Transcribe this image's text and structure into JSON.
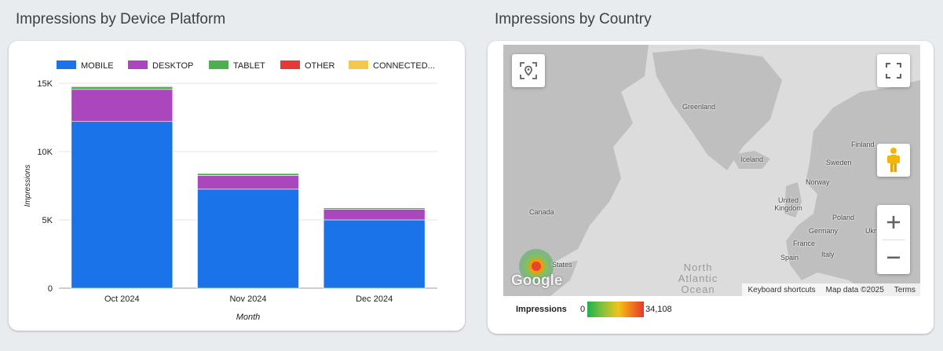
{
  "left_panel": {
    "title": "Impressions by Device Platform"
  },
  "right_panel": {
    "title": "Impressions by Country"
  },
  "chart_data": {
    "type": "bar",
    "stacked": true,
    "categories": [
      "Oct 2024",
      "Nov 2024",
      "Dec 2024"
    ],
    "series": [
      {
        "name": "MOBILE",
        "color": "#1a73e8",
        "values": [
          12200,
          7250,
          5000
        ]
      },
      {
        "name": "DESKTOP",
        "color": "#ab47bc",
        "values": [
          2350,
          1000,
          780
        ]
      },
      {
        "name": "TABLET",
        "color": "#4caf50",
        "values": [
          200,
          150,
          100
        ]
      },
      {
        "name": "OTHER",
        "color": "#e53935",
        "values": [
          50,
          30,
          20
        ]
      },
      {
        "name": "CONNECTED...",
        "color": "#f2c94c",
        "values": [
          10,
          10,
          10
        ]
      }
    ],
    "xlabel": "Month",
    "ylabel": "Impressions",
    "ylim": [
      0,
      15000
    ],
    "yticks": [
      {
        "value": 0,
        "label": "0"
      },
      {
        "value": 5000,
        "label": "5K"
      },
      {
        "value": 10000,
        "label": "10K"
      },
      {
        "value": 15000,
        "label": "15K"
      }
    ],
    "grid": true,
    "legend_position": "top"
  },
  "map": {
    "labels": {
      "greenland": "Greenland",
      "iceland": "Iceland",
      "finland": "Finland",
      "sweden": "Sweden",
      "norway": "Norway",
      "uk": "United Kingdom",
      "canada": "Canada",
      "poland": "Poland",
      "germany": "Germany",
      "ukraine": "Ukr",
      "france": "France",
      "italy": "Italy",
      "spain": "Spain",
      "us": "States",
      "ocean": "North Atlantic Ocean"
    },
    "google_logo": "Google",
    "keyboard_shortcuts": "Keyboard shortcuts",
    "map_data": "Map data ©2025",
    "terms": "Terms",
    "legend": {
      "title": "Impressions",
      "min": "0",
      "max": "34,108"
    }
  }
}
